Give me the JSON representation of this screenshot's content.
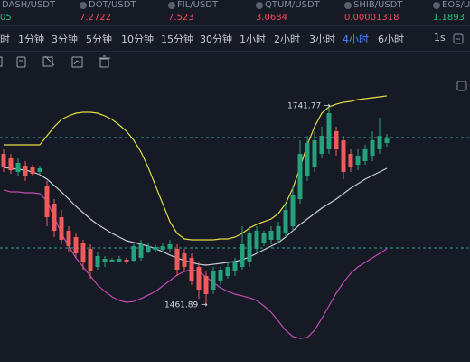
{
  "tickers": [
    {
      "name": "DASH/USDT",
      "price": "05",
      "color": "#2ebd85"
    },
    {
      "name": "DOT/USDT",
      "price": "7.2722",
      "color": "#f6465d"
    },
    {
      "name": "FIL/USDT",
      "price": "7.523",
      "color": "#f6465d"
    },
    {
      "name": "QTUM/USDT",
      "price": "3.0684",
      "color": "#f6465d"
    },
    {
      "name": "SHIB/USDT",
      "price": "0.00001318",
      "color": "#f6465d"
    },
    {
      "name": "EOS/USDT",
      "price": "1.1893",
      "color": "#2ebd85"
    }
  ],
  "timeframes": [
    {
      "label": "时",
      "active": false
    },
    {
      "label": "1分钟",
      "active": false
    },
    {
      "label": "3分钟",
      "active": false
    },
    {
      "label": "5分钟",
      "active": false
    },
    {
      "label": "10分钟",
      "active": false
    },
    {
      "label": "15分钟",
      "active": false
    },
    {
      "label": "30分钟",
      "active": false
    },
    {
      "label": "1小时",
      "active": false
    },
    {
      "label": "2小时",
      "active": false
    },
    {
      "label": "3小时",
      "active": false
    },
    {
      "label": "4小时",
      "active": true
    },
    {
      "label": "6小时",
      "active": false
    }
  ],
  "interval": "1s",
  "chart_data": {
    "type": "candlestick",
    "ylim": [
      1395,
      1789
    ],
    "up_color": "#26a17b",
    "down_color": "#ef5b5b",
    "candles": {
      "open": [
        1674.6,
        1668.3,
        1649.2,
        1658.1,
        1655.5,
        1649.2,
        1630.1,
        1604.7,
        1585.6,
        1566.6,
        1557.7,
        1550.0,
        1541.2,
        1515.7,
        1522.1,
        1523.4,
        1523.4,
        1526.0,
        1524.6,
        1528.5,
        1537.4,
        1539.9,
        1539.9,
        1541.2,
        1541.2,
        1534.8,
        1528.5,
        1515.7,
        1503.0,
        1484.0,
        1496.7,
        1503.0,
        1509.4,
        1515.7,
        1522.1,
        1541.2,
        1550.0,
        1553.9,
        1553.9,
        1562.8,
        1572.9,
        1611.0,
        1642.8,
        1655.5,
        1674.6,
        1681.0,
        1706.4,
        1693.7,
        1674.6,
        1659.2,
        1664.4,
        1672.0,
        1681.0,
        1689.9
      ],
      "high": [
        1681.0,
        1674.6,
        1668.3,
        1664.4,
        1659.2,
        1658.1,
        1636.5,
        1611.0,
        1595.8,
        1572.9,
        1562.8,
        1553.9,
        1547.5,
        1537.4,
        1531.0,
        1528.5,
        1531.0,
        1528.5,
        1550.0,
        1553.9,
        1550.0,
        1547.5,
        1550.0,
        1553.9,
        1547.5,
        1541.2,
        1534.8,
        1522.1,
        1509.4,
        1515.7,
        1515.7,
        1522.1,
        1528.5,
        1572.9,
        1572.9,
        1572.9,
        1566.6,
        1572.9,
        1579.3,
        1604.7,
        1630.1,
        1693.7,
        1700.0,
        1706.4,
        1712.7,
        1741.77,
        1712.7,
        1700.0,
        1681.0,
        1681.0,
        1687.3,
        1706.4,
        1725.5,
        1702.6
      ],
      "low": [
        1649.2,
        1646.6,
        1642.8,
        1636.5,
        1642.8,
        1646.6,
        1572.9,
        1557.7,
        1547.5,
        1537.4,
        1528.5,
        1511.9,
        1499.2,
        1511.9,
        1515.7,
        1522.1,
        1522.1,
        1519.5,
        1522.1,
        1524.6,
        1534.8,
        1537.4,
        1537.4,
        1537.4,
        1503.0,
        1509.4,
        1490.3,
        1471.3,
        1461.89,
        1477.6,
        1490.3,
        1499.2,
        1503.0,
        1511.9,
        1515.7,
        1534.8,
        1545.0,
        1547.5,
        1550.0,
        1557.7,
        1566.6,
        1604.7,
        1636.5,
        1649.2,
        1668.3,
        1674.6,
        1672.0,
        1639.0,
        1649.2,
        1651.7,
        1659.2,
        1664.4,
        1674.6,
        1684.8
      ],
      "close": [
        1655.5,
        1651.7,
        1661.9,
        1642.8,
        1646.6,
        1654.3,
        1585.6,
        1566.6,
        1553.9,
        1545.0,
        1534.8,
        1522.1,
        1509.4,
        1531.0,
        1527.2,
        1526.0,
        1527.2,
        1522.1,
        1545.0,
        1547.5,
        1545.0,
        1543.7,
        1545.0,
        1547.5,
        1511.9,
        1515.7,
        1496.7,
        1484.0,
        1477.6,
        1509.4,
        1511.9,
        1515.7,
        1522.1,
        1547.5,
        1562.8,
        1566.6,
        1562.8,
        1566.6,
        1572.9,
        1595.8,
        1617.4,
        1674.6,
        1689.9,
        1693.7,
        1700.0,
        1731.8,
        1681.0,
        1649.2,
        1655.5,
        1672.0,
        1681.0,
        1693.7,
        1700.0,
        1697.5
      ]
    },
    "series": [
      {
        "color": "#e3dc45",
        "values": [
          1687.3,
          1687.3,
          1687.3,
          1687.3,
          1687.3,
          1687.3,
          1700.0,
          1712.7,
          1722.9,
          1728.0,
          1731.8,
          1733.1,
          1733.1,
          1731.8,
          1728.0,
          1722.9,
          1715.3,
          1706.4,
          1693.7,
          1677.2,
          1655.5,
          1630.1,
          1604.7,
          1579.3,
          1562.8,
          1555.1,
          1553.9,
          1553.9,
          1553.9,
          1553.9,
          1555.1,
          1555.1,
          1557.7,
          1562.8,
          1570.4,
          1575.5,
          1579.3,
          1583.1,
          1590.7,
          1604.7,
          1626.3,
          1655.5,
          1687.3,
          1712.7,
          1731.8,
          1740.7,
          1744.5,
          1747.1,
          1748.3,
          1750.9,
          1752.1,
          1753.4,
          1754.7,
          1756.0
        ]
      },
      {
        "color": "#c9ccd2",
        "values": [
          1655.5,
          1654.3,
          1653.0,
          1651.7,
          1649.2,
          1645.4,
          1639.0,
          1630.1,
          1621.2,
          1611.1,
          1600.9,
          1592.0,
          1583.1,
          1575.5,
          1569.1,
          1562.8,
          1557.7,
          1552.6,
          1550.1,
          1547.5,
          1545.0,
          1541.2,
          1537.3,
          1532.3,
          1528.4,
          1524.6,
          1522.1,
          1519.5,
          1518.3,
          1519.5,
          1520.8,
          1522.1,
          1523.4,
          1525.9,
          1529.7,
          1534.8,
          1539.9,
          1545.0,
          1550.1,
          1557.7,
          1566.6,
          1575.5,
          1583.1,
          1590.7,
          1598.4,
          1604.7,
          1611.1,
          1618.7,
          1626.3,
          1632.7,
          1639.0,
          1644.1,
          1649.2,
          1654.3
        ]
      },
      {
        "color": "#c04bb3",
        "values": [
          1623.8,
          1621.2,
          1621.2,
          1620.0,
          1620.0,
          1618.7,
          1608.5,
          1585.6,
          1562.8,
          1545.0,
          1528.4,
          1515.7,
          1503.0,
          1490.3,
          1481.4,
          1473.8,
          1468.7,
          1466.2,
          1467.4,
          1471.3,
          1476.3,
          1481.4,
          1489.0,
          1496.7,
          1504.3,
          1509.4,
          1511.9,
          1509.4,
          1501.7,
          1494.1,
          1486.5,
          1481.4,
          1477.6,
          1475.1,
          1472.5,
          1468.7,
          1461.1,
          1452.2,
          1439.5,
          1426.8,
          1417.9,
          1415.3,
          1416.6,
          1426.8,
          1443.3,
          1461.1,
          1478.9,
          1494.1,
          1506.8,
          1515.7,
          1522.1,
          1528.4,
          1534.8,
          1541.2
        ]
      }
    ],
    "price_lines": [
      1697.5,
      1542.4
    ],
    "annotations": [
      "1741.77 →",
      "1461.89 →"
    ]
  }
}
